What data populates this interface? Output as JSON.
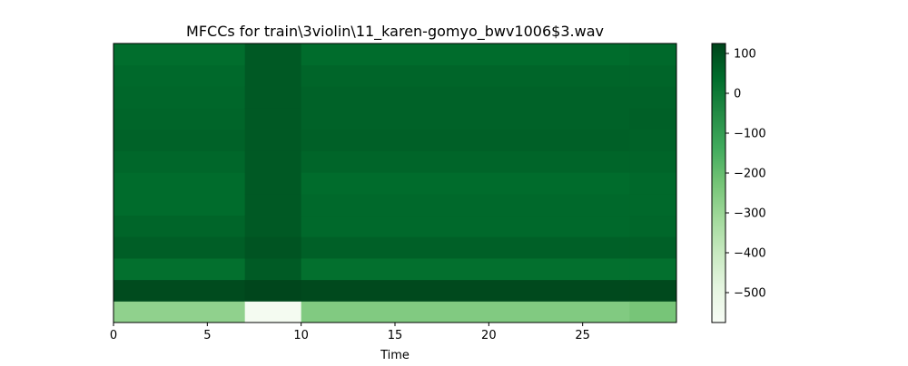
{
  "chart_data": {
    "type": "heatmap",
    "title": "MFCCs for train\\3violin\\11_karen-gomyo_bwv1006$3.wav",
    "xlabel": "Time",
    "ylabel": "",
    "xlim": [
      0,
      30
    ],
    "x_ticks": [
      0,
      5,
      10,
      15,
      20,
      25
    ],
    "x_tick_labels": [
      "0",
      "5",
      "10",
      "15",
      "20",
      "25"
    ],
    "n_coefficients": 13,
    "colormap": "Greens",
    "colormap_stops": [
      "#f7fcf5",
      "#e5f5e0",
      "#c7e9c0",
      "#a1d99b",
      "#74c476",
      "#41ab5d",
      "#238b45",
      "#006d2c",
      "#00441b"
    ],
    "color_range": [
      -575,
      125
    ],
    "colorbar_ticks": [
      100,
      0,
      -100,
      -200,
      -300,
      -400,
      -500
    ],
    "colorbar_tick_labels": [
      "100",
      "0",
      "−100",
      "−200",
      "−300",
      "−400",
      "−500"
    ],
    "time_segments": [
      {
        "t_start": 0,
        "t_end": 7,
        "coefficient_values": [
          -280,
          110,
          30,
          70,
          55,
          40,
          40,
          50,
          60,
          55,
          50,
          45,
          35
        ]
      },
      {
        "t_start": 7,
        "t_end": 10,
        "coefficient_values": [
          -560,
          120,
          75,
          90,
          80,
          80,
          80,
          80,
          80,
          80,
          80,
          80,
          80
        ]
      },
      {
        "t_start": 10,
        "t_end": 27.5,
        "coefficient_values": [
          -250,
          115,
          30,
          65,
          45,
          45,
          40,
          55,
          65,
          60,
          60,
          55,
          40
        ]
      },
      {
        "t_start": 27.5,
        "t_end": 30,
        "coefficient_values": [
          -230,
          115,
          30,
          65,
          50,
          45,
          45,
          55,
          60,
          65,
          60,
          55,
          45
        ]
      }
    ]
  }
}
